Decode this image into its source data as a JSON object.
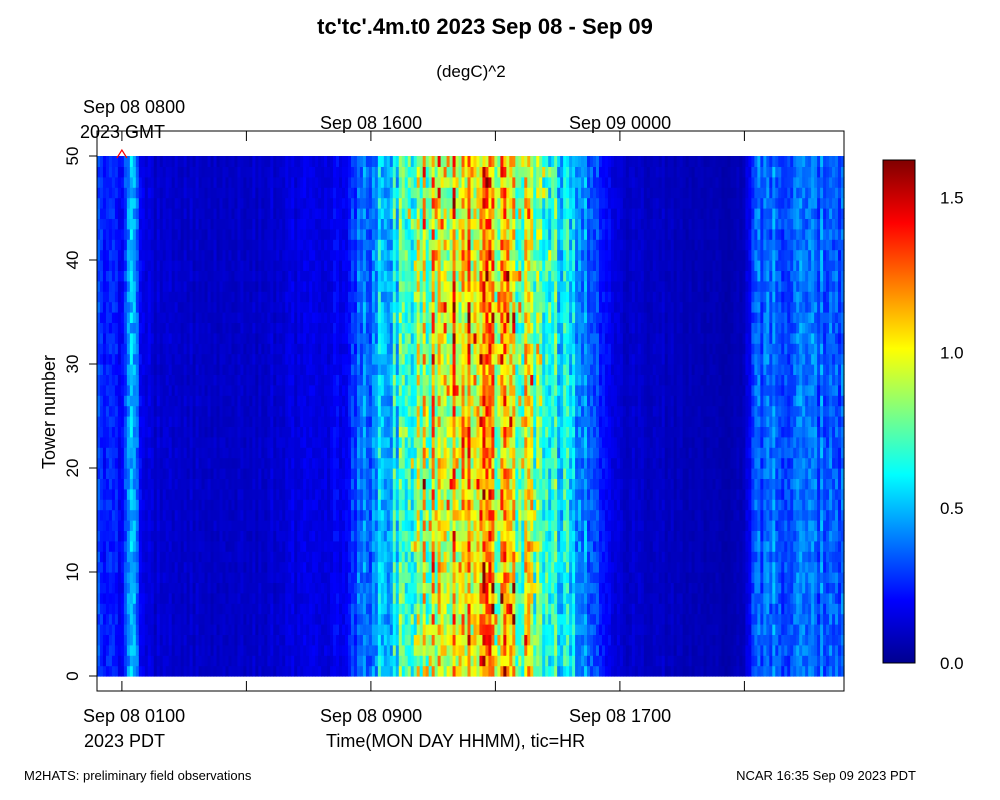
{
  "title": "tc'tc'.4m.t0 2023 Sep 08 - Sep 09",
  "units": "(degC)^2",
  "top_axis": {
    "tick_labels": [
      "Sep 08 0800",
      "Sep 08 1600",
      "Sep 09 0000"
    ],
    "first_sublabel": "2023 GMT"
  },
  "bottom_axis": {
    "tick_labels": [
      "Sep 08 0100",
      "Sep 08 0900",
      "Sep 08 1700"
    ],
    "first_sublabel": "2023 PDT",
    "label": "Time(MON DAY HHMM), tic=HR"
  },
  "footer": {
    "left": "M2HATS: preliminary field observations",
    "right": "NCAR 16:35 Sep 09 2023 PDT"
  },
  "colorbar": {
    "tick_labels": [
      "0.0",
      "0.5",
      "1.0",
      "1.5"
    ],
    "tick_values": [
      0.0,
      0.5,
      1.0,
      1.5
    ],
    "range": [
      0.0,
      1.62
    ],
    "colormap": [
      "#00008f",
      "#0000ff",
      "#00ffff",
      "#ffff00",
      "#ff0000",
      "#800000"
    ]
  },
  "chart_data": {
    "type": "heatmap",
    "title": "tc'tc'.4m.t0 2023 Sep 08 - Sep 09",
    "xlabel": "Time(MON DAY HHMM), tic=HR",
    "ylabel": "Tower number",
    "units": "(degC)^2",
    "x_unit": "hours since Sep 08 0000 PDT",
    "xlim": [
      0.2,
      24.2
    ],
    "ylim": [
      0,
      50
    ],
    "ytick_labels": [
      "0",
      "10",
      "20",
      "30",
      "40",
      "50"
    ],
    "yticks": [
      0,
      10,
      20,
      30,
      40,
      50
    ],
    "x_ticks_pdt_hours": [
      1,
      5,
      9,
      13,
      17,
      21
    ],
    "value_range": [
      0.0,
      1.62
    ],
    "time_profile": [
      {
        "hour": 0.2,
        "value": 0.3
      },
      {
        "hour": 1.0,
        "value": 0.2
      },
      {
        "hour": 1.3,
        "value": 0.55
      },
      {
        "hour": 1.6,
        "value": 0.2
      },
      {
        "hour": 2.0,
        "value": 0.12
      },
      {
        "hour": 5.0,
        "value": 0.1
      },
      {
        "hour": 8.0,
        "value": 0.18
      },
      {
        "hour": 9.5,
        "value": 0.55
      },
      {
        "hour": 11.0,
        "value": 0.95
      },
      {
        "hour": 12.5,
        "value": 1.15
      },
      {
        "hour": 13.5,
        "value": 0.95
      },
      {
        "hour": 15.0,
        "value": 0.65
      },
      {
        "hour": 16.0,
        "value": 0.35
      },
      {
        "hour": 17.0,
        "value": 0.12
      },
      {
        "hour": 20.0,
        "value": 0.06
      },
      {
        "hour": 21.0,
        "value": 0.08
      },
      {
        "hour": 21.4,
        "value": 0.35
      },
      {
        "hour": 22.5,
        "value": 0.35
      },
      {
        "hour": 24.2,
        "value": 0.35
      }
    ],
    "marker": {
      "symbol": "^",
      "hour": 1.0,
      "tower": 50,
      "color": "#ff0000"
    }
  }
}
